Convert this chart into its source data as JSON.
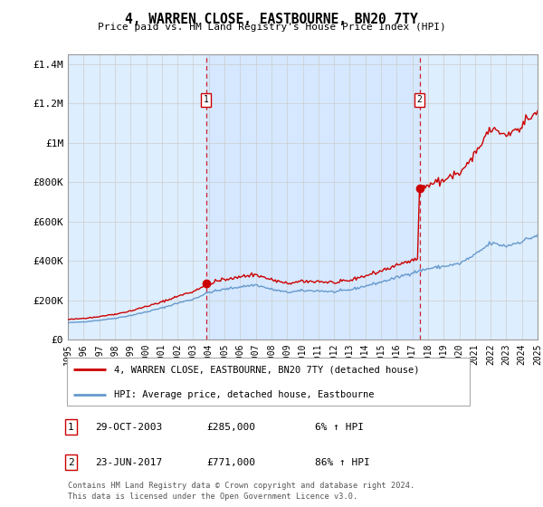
{
  "title": "4, WARREN CLOSE, EASTBOURNE, BN20 7TY",
  "subtitle": "Price paid vs. HM Land Registry's House Price Index (HPI)",
  "plot_bg_color": "#ddeeff",
  "ylim": [
    0,
    1450000
  ],
  "yticks": [
    0,
    200000,
    400000,
    600000,
    800000,
    1000000,
    1200000,
    1400000
  ],
  "ytick_labels": [
    "£0",
    "£200K",
    "£400K",
    "£600K",
    "£800K",
    "£1M",
    "£1.2M",
    "£1.4M"
  ],
  "sale_year_nums": [
    2003.83,
    2017.46
  ],
  "sale_prices": [
    285000,
    771000
  ],
  "sale_labels": [
    "1",
    "2"
  ],
  "sale_table": [
    [
      "1",
      "29-OCT-2003",
      "£285,000",
      "6% ↑ HPI"
    ],
    [
      "2",
      "23-JUN-2017",
      "£771,000",
      "86% ↑ HPI"
    ]
  ],
  "legend_line1": "4, WARREN CLOSE, EASTBOURNE, BN20 7TY (detached house)",
  "legend_line2": "HPI: Average price, detached house, Eastbourne",
  "footer": "Contains HM Land Registry data © Crown copyright and database right 2024.\nThis data is licensed under the Open Government Licence v3.0.",
  "price_line_color": "#cc0000",
  "hpi_line_color": "#6699cc",
  "grid_color": "#cccccc",
  "dashed_line_color": "#cc0000"
}
